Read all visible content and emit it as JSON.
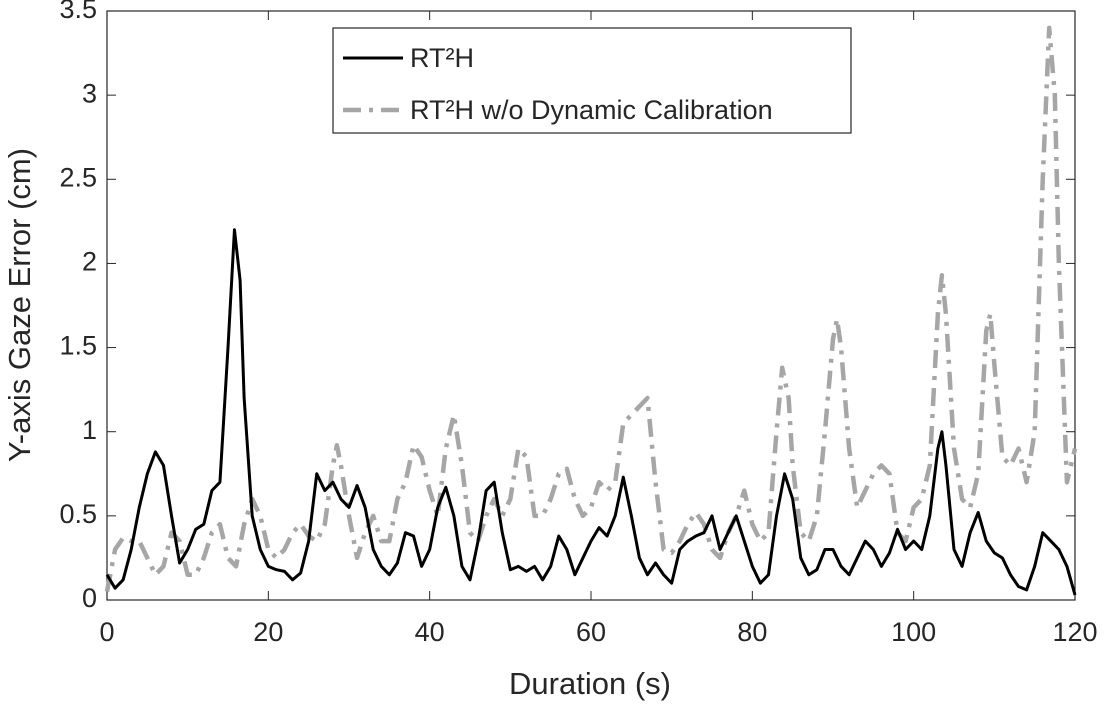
{
  "chart_data": {
    "type": "line",
    "xlabel": "Duration (s)",
    "ylabel": "Y-axis Gaze Error (cm)",
    "xlim": [
      0,
      120
    ],
    "xticks": [
      0,
      20,
      40,
      60,
      80,
      100,
      120
    ],
    "ylim": [
      0,
      3.5
    ],
    "yticks": [
      0,
      0.5,
      1,
      1.5,
      2,
      2.5,
      3,
      3.5
    ],
    "grid": false,
    "legend": "top",
    "series": [
      {
        "name": "RT²H",
        "color": "#000000",
        "style": "solid",
        "x": [
          0,
          1,
          2,
          3,
          4,
          5,
          6,
          7,
          8,
          9,
          10,
          11,
          12,
          13,
          14,
          15,
          15.8,
          16.5,
          17,
          18,
          19,
          20,
          21,
          22,
          23,
          24,
          25,
          26,
          27,
          28,
          29,
          30,
          31,
          32,
          33,
          34,
          35,
          36,
          37,
          38,
          39,
          40,
          41,
          42,
          43,
          44,
          45,
          46,
          47,
          48,
          49,
          50,
          51,
          52,
          53,
          54,
          55,
          56,
          57,
          58,
          59,
          60,
          61,
          62,
          63,
          64,
          65,
          66,
          67,
          68,
          69,
          70,
          71,
          72,
          73,
          74,
          75,
          76,
          77,
          78,
          79,
          80,
          81,
          82,
          83,
          84,
          85,
          86,
          87,
          88,
          89,
          90,
          91,
          92,
          93,
          94,
          95,
          96,
          97,
          98,
          99,
          100,
          101,
          102,
          103,
          103.5,
          104,
          105,
          106,
          107,
          108,
          109,
          110,
          111,
          112,
          113,
          114,
          115,
          116,
          117,
          118,
          119,
          120
        ],
        "values": [
          0.15,
          0.07,
          0.12,
          0.3,
          0.55,
          0.75,
          0.88,
          0.8,
          0.5,
          0.22,
          0.3,
          0.42,
          0.45,
          0.65,
          0.7,
          1.5,
          2.2,
          1.9,
          1.2,
          0.5,
          0.3,
          0.2,
          0.18,
          0.17,
          0.12,
          0.16,
          0.35,
          0.75,
          0.65,
          0.7,
          0.6,
          0.55,
          0.68,
          0.55,
          0.3,
          0.2,
          0.15,
          0.22,
          0.4,
          0.38,
          0.2,
          0.3,
          0.55,
          0.67,
          0.5,
          0.2,
          0.12,
          0.35,
          0.65,
          0.7,
          0.4,
          0.18,
          0.2,
          0.17,
          0.2,
          0.12,
          0.2,
          0.38,
          0.3,
          0.15,
          0.25,
          0.35,
          0.43,
          0.38,
          0.5,
          0.73,
          0.5,
          0.25,
          0.15,
          0.22,
          0.15,
          0.1,
          0.3,
          0.35,
          0.38,
          0.4,
          0.5,
          0.3,
          0.4,
          0.5,
          0.35,
          0.2,
          0.1,
          0.15,
          0.5,
          0.75,
          0.6,
          0.25,
          0.15,
          0.18,
          0.3,
          0.3,
          0.2,
          0.15,
          0.25,
          0.35,
          0.3,
          0.2,
          0.28,
          0.42,
          0.3,
          0.35,
          0.3,
          0.5,
          0.9,
          1.0,
          0.8,
          0.3,
          0.2,
          0.4,
          0.52,
          0.35,
          0.28,
          0.25,
          0.15,
          0.08,
          0.06,
          0.2,
          0.4,
          0.35,
          0.3,
          0.2,
          0.03
        ]
      },
      {
        "name": "RT²H w/o Dynamic Calibration",
        "color": "#a6a6a6",
        "style": "dashdot",
        "x": [
          0,
          1,
          2,
          3,
          4,
          5,
          6,
          7,
          8,
          9,
          10,
          11,
          12,
          13,
          14,
          15,
          16,
          17,
          18,
          19,
          20,
          21,
          22,
          23,
          24,
          25,
          26,
          27,
          28,
          28.5,
          29,
          30,
          31,
          32,
          33,
          34,
          35,
          36,
          37,
          38,
          39,
          40,
          41,
          42,
          43,
          44,
          45,
          46,
          47,
          48,
          49,
          50,
          51,
          52,
          53,
          54,
          55,
          56,
          57,
          58,
          59,
          60,
          61,
          62,
          63,
          64,
          65,
          66,
          67,
          68,
          69,
          70,
          71,
          72,
          73,
          74,
          75,
          76,
          77,
          78,
          79,
          80,
          81,
          82,
          83,
          83.7,
          84.5,
          85,
          86,
          87,
          88,
          89,
          90,
          90.5,
          91,
          92,
          93,
          94,
          95,
          96,
          97,
          98,
          99,
          100,
          101,
          102,
          103,
          103.5,
          104,
          105,
          106,
          107,
          108,
          109,
          109.5,
          110,
          111,
          112,
          113,
          114,
          115,
          116,
          116.8,
          117.5,
          118,
          119,
          120
        ],
        "values": [
          0.05,
          0.3,
          0.37,
          0.35,
          0.35,
          0.25,
          0.15,
          0.2,
          0.4,
          0.35,
          0.15,
          0.15,
          0.25,
          0.4,
          0.45,
          0.25,
          0.2,
          0.45,
          0.6,
          0.5,
          0.3,
          0.25,
          0.3,
          0.4,
          0.45,
          0.38,
          0.35,
          0.45,
          0.8,
          0.92,
          0.8,
          0.5,
          0.25,
          0.4,
          0.5,
          0.35,
          0.35,
          0.6,
          0.7,
          0.92,
          0.85,
          0.65,
          0.5,
          0.9,
          1.1,
          0.8,
          0.4,
          0.35,
          0.5,
          0.6,
          0.5,
          0.6,
          0.9,
          0.85,
          0.5,
          0.5,
          0.6,
          0.75,
          0.78,
          0.6,
          0.5,
          0.55,
          0.7,
          0.65,
          0.7,
          1.05,
          1.1,
          1.15,
          1.2,
          0.7,
          0.3,
          0.28,
          0.35,
          0.45,
          0.52,
          0.45,
          0.3,
          0.25,
          0.4,
          0.5,
          0.65,
          0.45,
          0.35,
          0.4,
          1.0,
          1.38,
          1.2,
          0.8,
          0.4,
          0.35,
          0.5,
          1.0,
          1.55,
          1.67,
          1.5,
          0.9,
          0.55,
          0.65,
          0.75,
          0.8,
          0.75,
          0.4,
          0.35,
          0.55,
          0.6,
          0.8,
          1.7,
          1.93,
          1.7,
          0.9,
          0.6,
          0.55,
          0.75,
          1.6,
          1.7,
          1.4,
          0.85,
          0.8,
          0.9,
          0.7,
          1.0,
          2.5,
          3.4,
          3.0,
          2.0,
          0.7,
          0.9
        ]
      }
    ]
  }
}
